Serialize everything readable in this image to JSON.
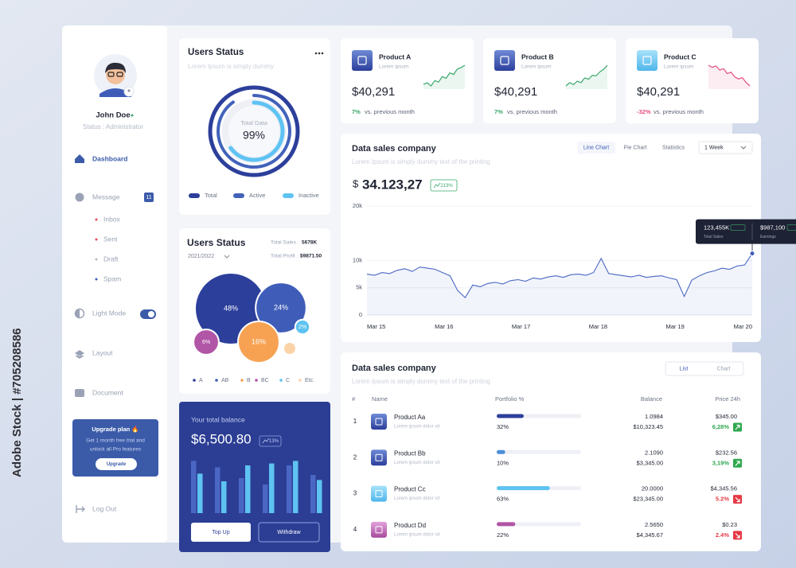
{
  "watermark": "Adobe Stock | #705208586",
  "sidebar": {
    "user": "John Doe",
    "status": "Status : Administrator",
    "menu": [
      "Dashboard",
      "Message",
      "Inbox",
      "Sent",
      "Draft",
      "Spam",
      "Light Mode",
      "Layout",
      "Document",
      "Log Out"
    ],
    "message_count": "11",
    "upgrade": {
      "title": "Upgrade plan 🔥",
      "text": [
        "Get 1 month free trial and",
        "unlock all Pro features"
      ],
      "button": "Upgrade"
    }
  },
  "users_status": {
    "title": "Users Status",
    "subtitle": "Lorem Ipsum is simply dummy",
    "center_label": "Total Data",
    "center_value": "99%",
    "rings": [
      {
        "name": "Total",
        "color": "#2c3f9b",
        "value": 100
      },
      {
        "name": "Active",
        "color": "#4262ba",
        "value": 90
      },
      {
        "name": "Inactive",
        "color": "#5ec3f2",
        "value": 65
      }
    ]
  },
  "bubbles": {
    "title": "Users Status",
    "period": "2021/2022",
    "total_sales_label": "Total Sales :",
    "total_sales": "5678K",
    "total_profit_label": "Total Profit :",
    "total_profit": "$9871.50",
    "categories": [
      "A",
      "AB",
      "B",
      "BC",
      "C",
      "Etc."
    ],
    "values": [
      48,
      24,
      16,
      6,
      2,
      null
    ],
    "value_labels": [
      "48%",
      "24%",
      "16%",
      "6%",
      "2%",
      null
    ],
    "colors": [
      "#2c3f9b",
      "#3f5db8",
      "#f7a252",
      "#b155a6",
      "#5ec3f2",
      "#fcd2a8"
    ]
  },
  "balance": {
    "title": "Your total balance",
    "amount": "$6,500.80",
    "change": "13%",
    "bars": {
      "ylim": [
        0,
        100
      ],
      "series": [
        {
          "color": "#4a67c4",
          "values": [
            82,
            72,
            55,
            45,
            75,
            60
          ]
        },
        {
          "color": "#5ec3f2",
          "values": [
            62,
            50,
            75,
            78,
            82,
            52
          ]
        }
      ]
    },
    "buttons": [
      "Top Up",
      "Withdraw"
    ]
  },
  "products": [
    {
      "name": "Product A",
      "subtitle": "Lorem ipsum",
      "price": "$40,291",
      "change": "7%",
      "change_note": "vs. previous month",
      "color": "#3aa86b",
      "icon_color": "#3f5db8",
      "trend": [
        20,
        22,
        18,
        25,
        23,
        30,
        28,
        35,
        33,
        40,
        42,
        45
      ]
    },
    {
      "name": "Product B",
      "subtitle": "Lorem ipsum",
      "price": "$40,291",
      "change": "7%",
      "change_note": "vs. previous month",
      "color": "#3aa86b",
      "icon_color": "#3f5db8",
      "trend": [
        15,
        20,
        17,
        22,
        20,
        27,
        25,
        31,
        30,
        36,
        40,
        46
      ]
    },
    {
      "name": "Product C",
      "subtitle": "Lorem ipsum",
      "price": "$40,291",
      "change": "-32%",
      "change_note": "vs. previous month",
      "color": "#e44d7b",
      "icon_color": "#5ec3f2",
      "trend": [
        45,
        42,
        44,
        38,
        40,
        33,
        35,
        28,
        25,
        27,
        20,
        15
      ]
    }
  ],
  "sales_chart": {
    "title": "Data sales company",
    "subtitle": "Lorem Ipsum is simply dummy text of the printing",
    "tabs": [
      "Line Chart",
      "Pie Chart",
      "Statistics"
    ],
    "active_tab": 0,
    "period": "1 Week",
    "currency": "$",
    "amount": "34.123,27",
    "change": "213%",
    "chart": {
      "type": "line",
      "color": "#4a67c4",
      "x_labels": [
        "Mar 15",
        "Mar 16",
        "Mar 17",
        "Mar 18",
        "Mar 19",
        "Mar 20"
      ],
      "values": [
        7500,
        7300,
        7800,
        7600,
        8200,
        8500,
        8000,
        8800,
        8600,
        8400,
        7800,
        7200,
        4500,
        3200,
        5500,
        5200,
        5800,
        6000,
        5700,
        6300,
        6500,
        6200,
        6800,
        6600,
        7000,
        7200,
        6900,
        7400,
        7500,
        7300,
        7800,
        10400,
        7600,
        7400,
        7200,
        7000,
        7300,
        6900,
        7100,
        7200,
        6800,
        6500,
        3400,
        6400,
        7200,
        7800,
        8100,
        8600,
        8400,
        9000,
        9200,
        11300
      ],
      "ylim": [
        0,
        20000
      ],
      "yticks": [
        0,
        {
          "value": 5000,
          "label": "5k"
        },
        {
          "value": 10000,
          "label": "10k"
        },
        {
          "value": 20000,
          "label": "20k"
        }
      ],
      "grid": true,
      "tooltip": {
        "sales": "123,455K",
        "sales_label": "Total Sales",
        "earnings": "$987,100",
        "earnings_label": "Earnings"
      }
    }
  },
  "table": {
    "title": "Data sales company",
    "subtitle": "Lorem Ipsum is simply dummy text of the printing",
    "tabs": [
      "List",
      "Chart"
    ],
    "columns": [
      "#",
      "Name",
      "Portfolio %",
      "Balance",
      "Price 24h"
    ],
    "rows": [
      {
        "rank": "1",
        "name": "Product Aa",
        "note": "Lorem ipsum dolor sit",
        "portfolio": 32,
        "portfolio_label": "32%",
        "amount": "1.0984",
        "balance": "$10,323.45",
        "price": "$345.00",
        "change": "6,28%",
        "trend": "up",
        "color": "#2c3f9b"
      },
      {
        "rank": "2",
        "name": "Product Bb",
        "note": "Lorem ipsum dolor sit",
        "portfolio": 10,
        "portfolio_label": "10%",
        "amount": "2.1090",
        "balance": "$3,345.00",
        "price": "$232.56",
        "change": "3,19%",
        "trend": "up",
        "color": "#4a8ed8"
      },
      {
        "rank": "3",
        "name": "Product Cc",
        "note": "Lorem ipsum dolor sit",
        "portfolio": 63,
        "portfolio_label": "63%",
        "amount": "20.0000",
        "balance": "$23,345.00",
        "price": "$4,345.56",
        "change": "5.2%",
        "trend": "down",
        "color": "#5ec3f2"
      },
      {
        "rank": "4",
        "name": "Product Dd",
        "note": "Lorem ipsum dolor sit",
        "portfolio": 22,
        "portfolio_label": "22%",
        "amount": "2.5650",
        "balance": "$4,345.67",
        "price": "$0.23",
        "change": "2.4%",
        "trend": "down",
        "color": "#b155a6"
      }
    ]
  }
}
